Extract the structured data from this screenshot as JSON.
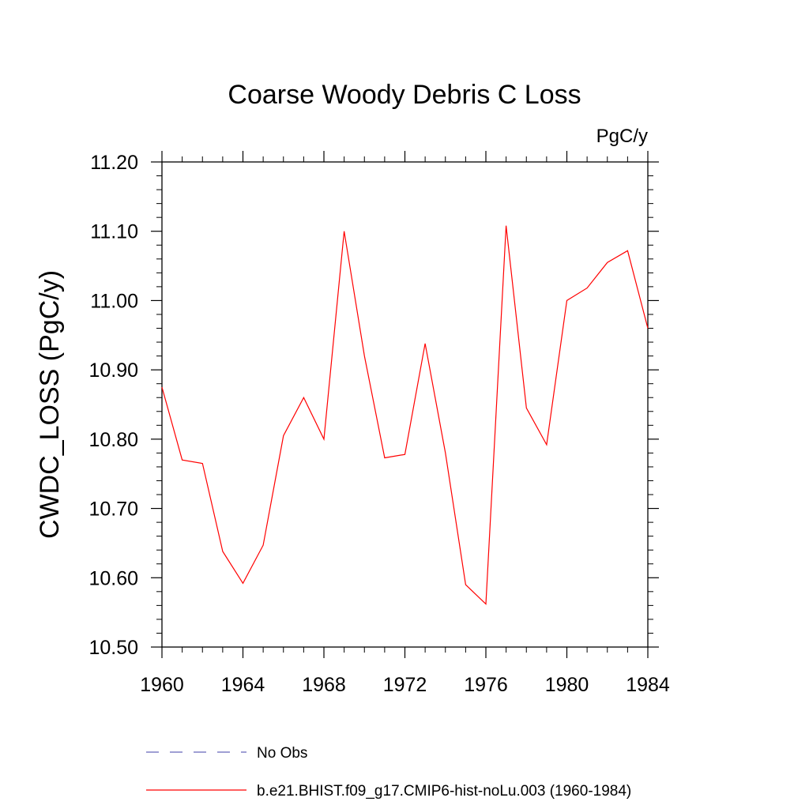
{
  "chart_data": {
    "type": "line",
    "title": "Coarse Woody Debris C Loss",
    "units": "PgC/y",
    "xlabel": "",
    "ylabel": "CWDC_LOSS  (PgC/y)",
    "xlim": [
      1960,
      1984
    ],
    "ylim": [
      10.5,
      11.2
    ],
    "xticks": [
      "1960",
      "1964",
      "1968",
      "1972",
      "1976",
      "1980",
      "1984"
    ],
    "yticks": [
      "10.50",
      "10.60",
      "10.70",
      "10.80",
      "10.90",
      "11.00",
      "11.10",
      "11.20"
    ],
    "x": [
      1960,
      1961,
      1962,
      1963,
      1964,
      1965,
      1966,
      1967,
      1968,
      1969,
      1970,
      1971,
      1972,
      1973,
      1974,
      1975,
      1976,
      1977,
      1978,
      1979,
      1980,
      1981,
      1982,
      1983,
      1984
    ],
    "series": [
      {
        "name": "b.e21.BHIST.f09_g17.CMIP6-hist-noLu.003 (1960-1984)",
        "color": "#ff0000",
        "values": [
          10.875,
          10.77,
          10.765,
          10.638,
          10.592,
          10.647,
          10.805,
          10.86,
          10.8,
          11.1,
          10.92,
          10.773,
          10.778,
          10.938,
          10.78,
          10.59,
          10.562,
          11.108,
          10.845,
          10.792,
          11.0,
          11.018,
          11.055,
          11.072,
          10.96
        ]
      }
    ],
    "legend": [
      {
        "label": "No Obs",
        "color": "#6666bb",
        "style": "dashed"
      },
      {
        "label": "b.e21.BHIST.f09_g17.CMIP6-hist-noLu.003 (1960-1984)",
        "color": "#ff0000",
        "style": "solid"
      }
    ],
    "legend_position": "bottom",
    "grid": false
  }
}
